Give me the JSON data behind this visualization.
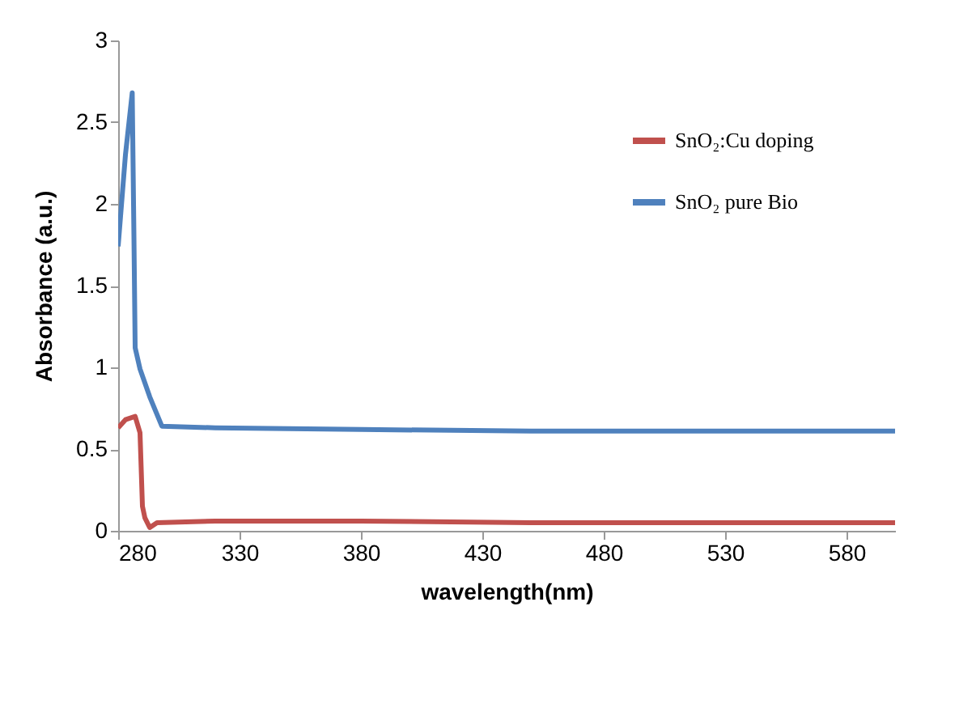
{
  "chart_data": {
    "type": "line",
    "xlabel": "wavelength(nm)",
    "ylabel": "Absorbance  (a.u.)",
    "xlim": [
      280,
      600
    ],
    "xticks": [
      280,
      330,
      380,
      430,
      480,
      530,
      580
    ],
    "ylim": [
      0,
      3
    ],
    "yticks": [
      0,
      0.5,
      1,
      1.5,
      2,
      2.5,
      3
    ],
    "grid": false,
    "legend": "top right",
    "marker": "none",
    "line_style": "solid",
    "series": [
      {
        "name": "SnO₂:Cu doping",
        "color": "#c0504d",
        "x": [
          280,
          283,
          287,
          289,
          290,
          291,
          293,
          296,
          320,
          380,
          450,
          520,
          600
        ],
        "values": [
          0.63,
          0.68,
          0.7,
          0.6,
          0.15,
          0.08,
          0.02,
          0.05,
          0.06,
          0.06,
          0.05,
          0.05,
          0.05
        ]
      },
      {
        "name": "SnO₂ pure Bio",
        "color": "#4f81bd",
        "x": [
          280,
          283,
          285.8,
          286.5,
          287,
          289,
          293,
          298,
          320,
          380,
          450,
          520,
          600
        ],
        "values": [
          1.74,
          2.3,
          2.68,
          1.8,
          1.12,
          0.99,
          0.82,
          0.64,
          0.63,
          0.62,
          0.61,
          0.61,
          0.61
        ]
      }
    ]
  }
}
